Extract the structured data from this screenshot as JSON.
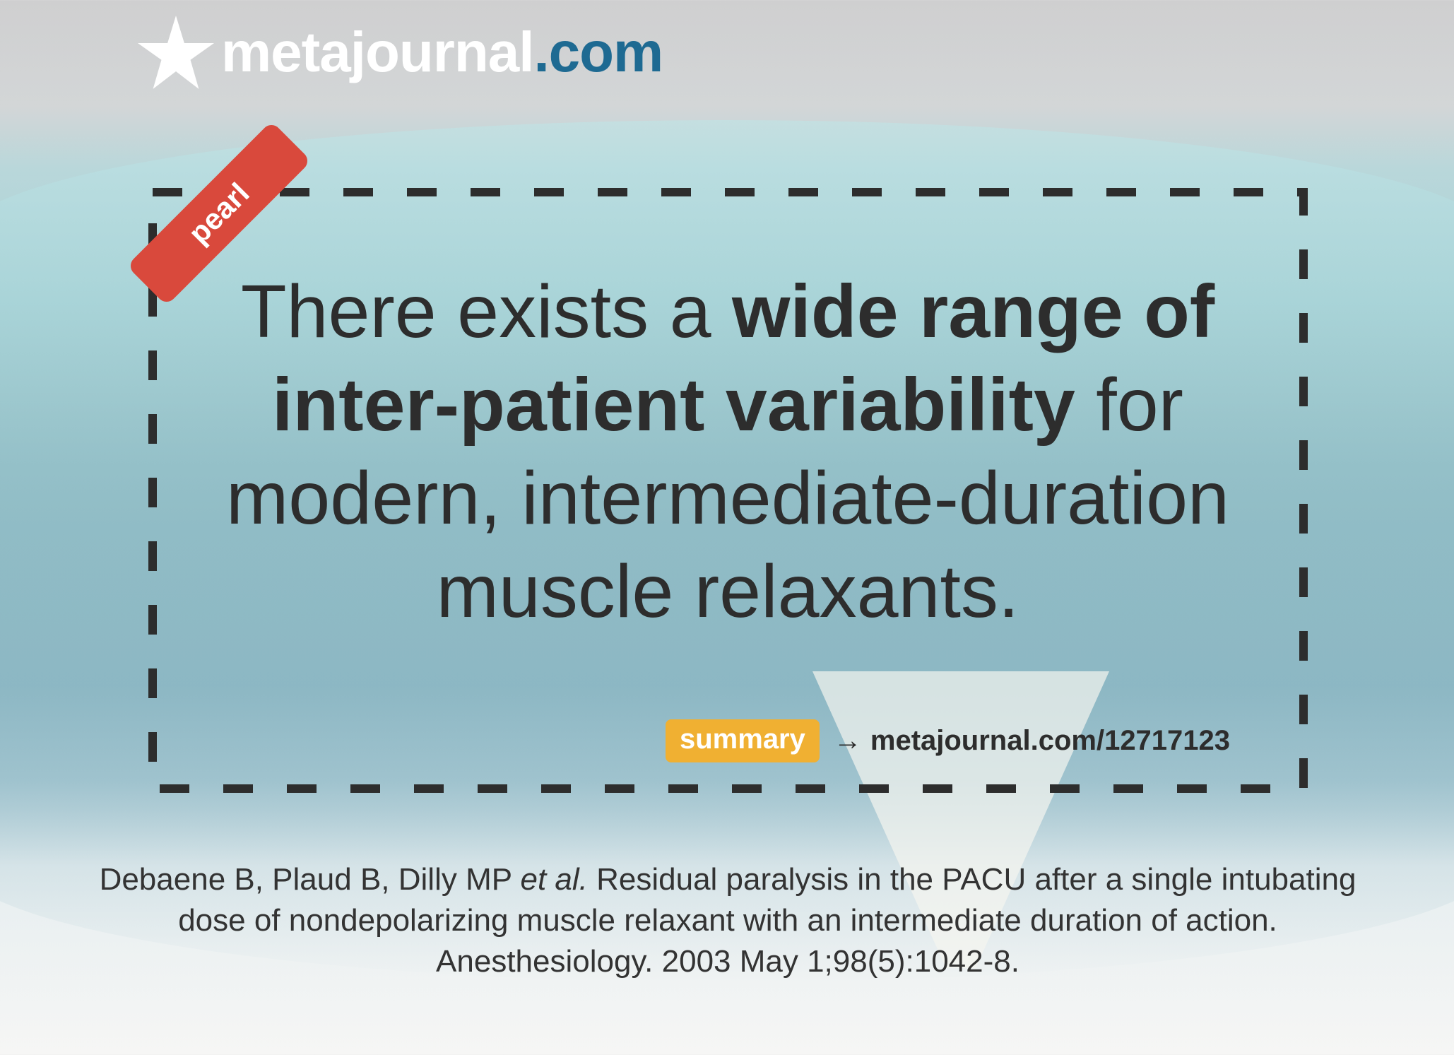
{
  "logo": {
    "name": "metajournal",
    "tld": ".com",
    "icon": "star-icon"
  },
  "tag": "pearl",
  "quote": {
    "part1": "There exists a ",
    "bold": "wide range of inter-patient variability",
    "part2": " for modern, intermediate-duration muscle relaxants."
  },
  "summary": {
    "badge": "summary",
    "arrow": "→",
    "link": "metajournal.com/12717123"
  },
  "citation": {
    "authors": "Debaene B, Plaud B, Dilly MP ",
    "etal": "et al.",
    "rest": " Residual paralysis in the PACU after a single intubating dose of nondepolarizing muscle relaxant with an intermediate duration of action. Anesthesiology. 2003 May 1;98(5):1042-8."
  },
  "colors": {
    "accent_red": "#d9493c",
    "accent_yellow": "#f0b032",
    "brand_blue": "#1e6a92"
  }
}
